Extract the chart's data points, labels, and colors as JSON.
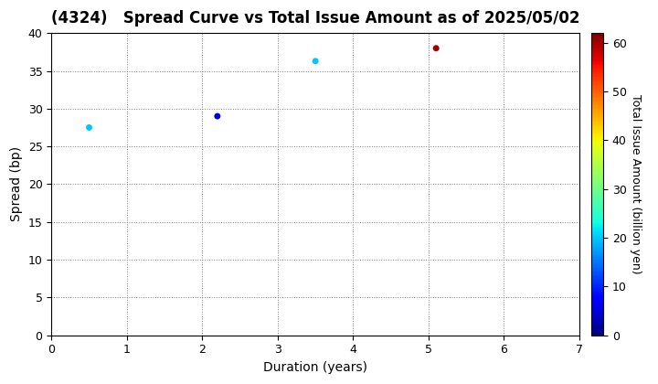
{
  "title": "(4324)   Spread Curve vs Total Issue Amount as of 2025/05/02",
  "points": [
    {
      "duration": 0.5,
      "spread": 27.5,
      "issue_amount": 20
    },
    {
      "duration": 2.2,
      "spread": 29.0,
      "issue_amount": 5
    },
    {
      "duration": 3.5,
      "spread": 36.3,
      "issue_amount": 20
    },
    {
      "duration": 5.1,
      "spread": 38.0,
      "issue_amount": 60
    }
  ],
  "xlim": [
    0,
    7
  ],
  "ylim": [
    0,
    40
  ],
  "xlabel": "Duration (years)",
  "ylabel": "Spread (bp)",
  "colorbar_label": "Total Issue Amount (billion yen)",
  "colorbar_min": 0,
  "colorbar_max": 62,
  "colorbar_ticks": [
    0,
    10,
    20,
    30,
    40,
    50,
    60
  ],
  "xticks": [
    0,
    1,
    2,
    3,
    4,
    5,
    6,
    7
  ],
  "yticks": [
    0,
    5,
    10,
    15,
    20,
    25,
    30,
    35,
    40
  ],
  "marker_size": 25,
  "title_fontsize": 12,
  "axis_label_fontsize": 10,
  "tick_fontsize": 9,
  "cbar_tick_fontsize": 9,
  "cbar_label_fontsize": 9
}
